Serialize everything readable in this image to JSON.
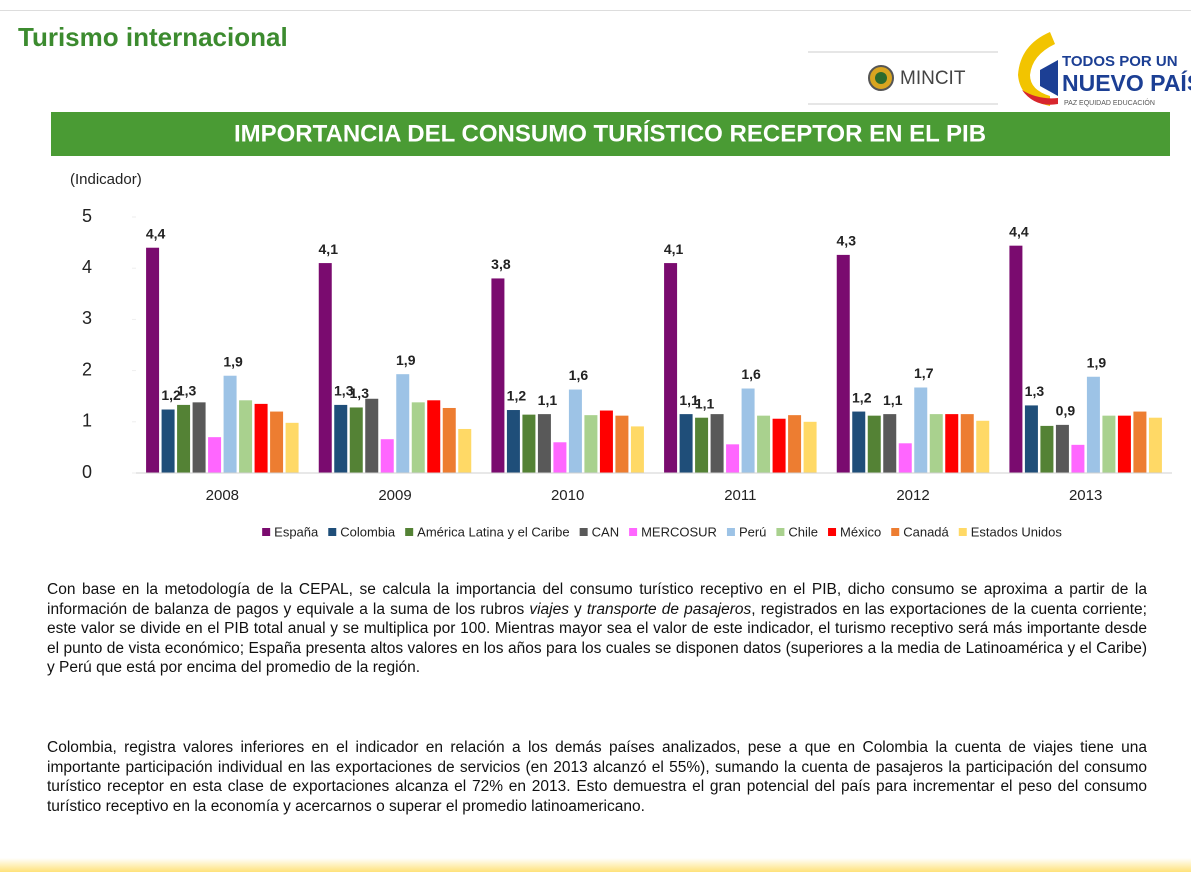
{
  "header": {
    "title": "Turismo internacional",
    "logo_left": "MINCIT",
    "logo_right_top": "TODOS POR UN",
    "logo_right_main": "NUEVO PAÍS",
    "logo_right_sub": "PAZ  EQUIDAD  EDUCACIÓN"
  },
  "chart_data": {
    "type": "bar",
    "title": "IMPORTANCIA DEL CONSUMO TURÍSTICO RECEPTOR EN EL PIB",
    "y_label": "(Indicador)",
    "categories": [
      "2008",
      "2009",
      "2010",
      "2011",
      "2012",
      "2013"
    ],
    "ylim": [
      0,
      5
    ],
    "yticks": [
      0,
      1,
      2,
      3,
      4,
      5
    ],
    "grid": false,
    "legend": "bottom",
    "series": [
      {
        "name": "España",
        "color": "#7a0b6f",
        "values": [
          4.4,
          4.1,
          3.8,
          4.1,
          4.26,
          4.44
        ],
        "value_labels": [
          "4,4",
          "4,1",
          "3,8",
          "4,1",
          "4,3",
          "4,4"
        ]
      },
      {
        "name": "Colombia",
        "color": "#1f4e79",
        "values": [
          1.24,
          1.33,
          1.23,
          1.15,
          1.2,
          1.32
        ],
        "value_labels": [
          "1,2",
          "1,3",
          "1,2",
          "1,1",
          "1,2",
          "1,3"
        ]
      },
      {
        "name": "América Latina y el Caribe",
        "color": "#548235",
        "values": [
          1.33,
          1.28,
          1.14,
          1.08,
          1.12,
          0.92
        ],
        "value_labels": [
          "1,3",
          "1,3",
          null,
          "1,1",
          null,
          null
        ]
      },
      {
        "name": "CAN",
        "color": "#595959",
        "values": [
          1.38,
          1.45,
          1.15,
          1.15,
          1.15,
          0.94
        ],
        "value_labels": [
          null,
          null,
          "1,1",
          null,
          "1,1",
          "0,9"
        ]
      },
      {
        "name": "MERCOSUR",
        "color": "#ff66ff",
        "values": [
          0.7,
          0.66,
          0.6,
          0.56,
          0.58,
          0.55
        ],
        "value_labels": [
          null,
          null,
          null,
          null,
          null,
          null
        ]
      },
      {
        "name": "Perú",
        "color": "#9dc3e6",
        "values": [
          1.9,
          1.93,
          1.63,
          1.65,
          1.67,
          1.88
        ],
        "value_labels": [
          "1,9",
          "1,9",
          "1,6",
          "1,6",
          "1,7",
          "1,9"
        ]
      },
      {
        "name": "Chile",
        "color": "#a9d18e",
        "values": [
          1.42,
          1.38,
          1.13,
          1.12,
          1.15,
          1.12
        ],
        "value_labels": [
          null,
          null,
          null,
          null,
          null,
          null
        ]
      },
      {
        "name": "México",
        "color": "#ff0000",
        "values": [
          1.35,
          1.42,
          1.22,
          1.06,
          1.15,
          1.12
        ],
        "value_labels": [
          null,
          null,
          null,
          null,
          null,
          null
        ]
      },
      {
        "name": "Canadá",
        "color": "#ed7d31",
        "values": [
          1.2,
          1.27,
          1.12,
          1.13,
          1.15,
          1.2
        ],
        "value_labels": [
          null,
          null,
          null,
          null,
          null,
          null
        ]
      },
      {
        "name": "Estados Unidos",
        "color": "#ffd966",
        "values": [
          0.98,
          0.86,
          0.91,
          1.0,
          1.02,
          1.08
        ],
        "value_labels": [
          null,
          null,
          null,
          null,
          null,
          null
        ]
      }
    ]
  },
  "paragraphs": [
    [
      "Con base en la metodología de la CEPAL, se calcula la importancia del consumo turístico receptivo en el PIB, dicho consumo se aproxima a partir de la información de balanza de pagos y equivale a la suma de los rubros ",
      "viajes",
      " y ",
      "transporte de pasajeros",
      ", registrados en las exportaciones de la cuenta corriente; este valor se divide en el PIB total anual y se multiplica por 100. Mientras mayor sea el valor de este indicador, el turismo receptivo será más importante desde el punto de vista económico; España presenta altos valores en los años para los cuales se disponen datos (superiores a la media de Latinoamérica y el Caribe) y Perú que está por encima del promedio de la región."
    ],
    [
      "Colombia, registra valores inferiores en el indicador en relación a los demás países analizados, pese a que en Colombia la cuenta de viajes tiene una importante participación individual en las exportaciones de servicios (en 2013 alcanzó el 55%), sumando la cuenta de pasajeros la participación del consumo turístico receptor en esta clase de exportaciones alcanza el 72% en 2013. Esto demuestra el gran potencial del país para incrementar el peso del consumo turístico receptivo en la economía y acercarnos o superar el promedio latinoamericano."
    ]
  ]
}
